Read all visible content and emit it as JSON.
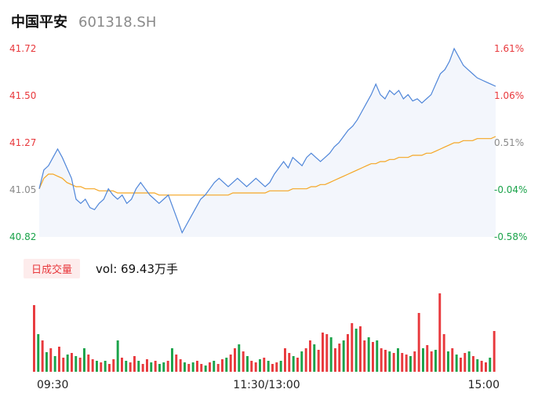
{
  "header": {
    "name": "中国平安",
    "code": "601318.SH"
  },
  "colors": {
    "up": "#e8393d",
    "down": "#1aa34a",
    "neutral": "#8a8a8a",
    "price_line": "#4f86d9",
    "avg_line": "#f5a623",
    "area_fill": "#f3f6fc"
  },
  "chart_data": {
    "type": "line",
    "y_axis_left": [
      "41.72",
      "41.50",
      "41.27",
      "41.05",
      "40.82"
    ],
    "y_axis_right": [
      "1.61%",
      "1.06%",
      "0.51%",
      "-0.04%",
      "-0.58%"
    ],
    "ylim": [
      40.82,
      41.72
    ],
    "reference_price": 41.06,
    "x_tick_labels": [
      "09:30",
      "11:30/13:00",
      "15:00"
    ],
    "series": [
      {
        "values": [
          41.05,
          41.14,
          41.16,
          41.2,
          41.24,
          41.2,
          41.15,
          41.1,
          41.0,
          40.98,
          41.0,
          40.96,
          40.95,
          40.98,
          41.0,
          41.05,
          41.02,
          41.0,
          41.02,
          40.98,
          41.0,
          41.05,
          41.08,
          41.05,
          41.02,
          41.0,
          40.98,
          41.0,
          41.02,
          40.96,
          40.9,
          40.84,
          40.88,
          40.92,
          40.96,
          41.0,
          41.02,
          41.05,
          41.08,
          41.1,
          41.08,
          41.06,
          41.08,
          41.1,
          41.08,
          41.06,
          41.08,
          41.1,
          41.08,
          41.06,
          41.08,
          41.12,
          41.15,
          41.18,
          41.15,
          41.2,
          41.18,
          41.16,
          41.2,
          41.22,
          41.2,
          41.18,
          41.2,
          41.22,
          41.25,
          41.27,
          41.3,
          41.33,
          41.35,
          41.38,
          41.42,
          41.46,
          41.5,
          41.55,
          41.5,
          41.48,
          41.52,
          41.5,
          41.52,
          41.48,
          41.5,
          41.47,
          41.48,
          41.46,
          41.48,
          41.5,
          41.55,
          41.6,
          41.62,
          41.66,
          41.72,
          41.68,
          41.64,
          41.62,
          41.6,
          41.58,
          41.57,
          41.56,
          41.55,
          41.54
        ]
      },
      {
        "values": [
          41.05,
          41.1,
          41.12,
          41.12,
          41.11,
          41.1,
          41.08,
          41.07,
          41.06,
          41.06,
          41.05,
          41.05,
          41.05,
          41.04,
          41.04,
          41.04,
          41.04,
          41.03,
          41.03,
          41.03,
          41.03,
          41.03,
          41.03,
          41.03,
          41.03,
          41.03,
          41.02,
          41.02,
          41.02,
          41.02,
          41.02,
          41.02,
          41.02,
          41.02,
          41.02,
          41.02,
          41.02,
          41.02,
          41.02,
          41.02,
          41.02,
          41.02,
          41.03,
          41.03,
          41.03,
          41.03,
          41.03,
          41.03,
          41.03,
          41.03,
          41.04,
          41.04,
          41.04,
          41.04,
          41.04,
          41.05,
          41.05,
          41.05,
          41.05,
          41.06,
          41.06,
          41.07,
          41.07,
          41.08,
          41.09,
          41.1,
          41.11,
          41.12,
          41.13,
          41.14,
          41.15,
          41.16,
          41.17,
          41.17,
          41.18,
          41.18,
          41.19,
          41.19,
          41.2,
          41.2,
          41.2,
          41.21,
          41.21,
          41.21,
          41.22,
          41.22,
          41.23,
          41.24,
          41.25,
          41.26,
          41.27,
          41.27,
          41.28,
          41.28,
          41.28,
          41.29,
          41.29,
          41.29,
          41.29,
          41.3
        ]
      }
    ],
    "volume_label": "日成交量",
    "volume_text": "vol: 69.43万手",
    "volume_values": [
      85,
      48,
      40,
      25,
      30,
      20,
      32,
      18,
      22,
      24,
      20,
      18,
      30,
      22,
      16,
      14,
      12,
      14,
      10,
      16,
      40,
      18,
      14,
      12,
      20,
      14,
      10,
      16,
      12,
      14,
      10,
      12,
      14,
      30,
      22,
      16,
      12,
      10,
      12,
      14,
      10,
      8,
      12,
      14,
      10,
      16,
      18,
      22,
      30,
      35,
      26,
      20,
      14,
      12,
      16,
      18,
      14,
      10,
      12,
      14,
      30,
      24,
      20,
      18,
      26,
      30,
      40,
      35,
      28,
      50,
      48,
      44,
      30,
      36,
      40,
      48,
      62,
      55,
      58,
      40,
      44,
      38,
      40,
      30,
      28,
      26,
      24,
      30,
      24,
      22,
      20,
      26,
      75,
      30,
      34,
      26,
      28,
      100,
      48,
      26,
      30,
      22,
      18,
      24,
      26,
      20,
      16,
      14,
      12,
      18,
      52
    ],
    "volume_directions": [
      1,
      0,
      1,
      0,
      1,
      0,
      1,
      1,
      0,
      1,
      0,
      1,
      0,
      1,
      1,
      0,
      1,
      0,
      1,
      1,
      0,
      1,
      0,
      1,
      1,
      0,
      1,
      1,
      0,
      1,
      0,
      0,
      1,
      0,
      1,
      1,
      0,
      1,
      0,
      1,
      1,
      0,
      1,
      0,
      1,
      1,
      0,
      1,
      1,
      0,
      1,
      0,
      1,
      1,
      0,
      1,
      0,
      1,
      1,
      0,
      1,
      1,
      0,
      1,
      0,
      1,
      1,
      0,
      1,
      1,
      1,
      0,
      1,
      1,
      0,
      1,
      1,
      0,
      1,
      1,
      0,
      1,
      0,
      1,
      1,
      0,
      1,
      0,
      1,
      1,
      0,
      1,
      1,
      0,
      1,
      1,
      0,
      1,
      1,
      0,
      1,
      0,
      1,
      1,
      0,
      1,
      0,
      1,
      1,
      0,
      1
    ]
  }
}
